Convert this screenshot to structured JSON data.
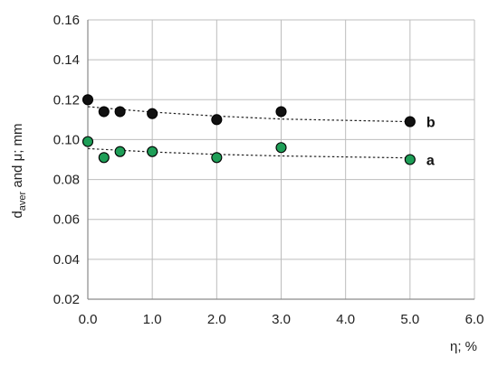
{
  "chart_data": {
    "type": "scatter",
    "xlabel": "η; %",
    "ylabel": {
      "main": "d",
      "sub": "aver",
      "rest": " and μ; mm"
    },
    "xlim": [
      0,
      6
    ],
    "ylim": [
      0.02,
      0.16
    ],
    "x_ticks": [
      "0.0",
      "1.0",
      "2.0",
      "3.0",
      "4.0",
      "5.0",
      "6.0"
    ],
    "y_ticks": [
      "0.02",
      "0.04",
      "0.06",
      "0.08",
      "0.10",
      "0.12",
      "0.14",
      "0.16"
    ],
    "grid": true,
    "series": [
      {
        "name": "b",
        "color": "#111111",
        "x": [
          0,
          0.25,
          0.5,
          1.0,
          2.0,
          3.0,
          5.0
        ],
        "y": [
          0.12,
          0.114,
          0.114,
          0.113,
          0.11,
          0.114,
          0.109
        ],
        "trend": {
          "style": "dashed",
          "x": [
            0,
            1,
            2,
            3,
            5
          ],
          "y": [
            0.1165,
            0.1138,
            0.1118,
            0.1103,
            0.109
          ]
        }
      },
      {
        "name": "a",
        "color": "#1e9e57",
        "x": [
          0,
          0.25,
          0.5,
          1.0,
          2.0,
          3.0,
          5.0
        ],
        "y": [
          0.099,
          0.091,
          0.094,
          0.094,
          0.091,
          0.096,
          0.09
        ],
        "trend": {
          "style": "dashed",
          "x": [
            0,
            1,
            2,
            3,
            5
          ],
          "y": [
            0.0955,
            0.0938,
            0.0926,
            0.0918,
            0.0908
          ]
        }
      }
    ]
  }
}
